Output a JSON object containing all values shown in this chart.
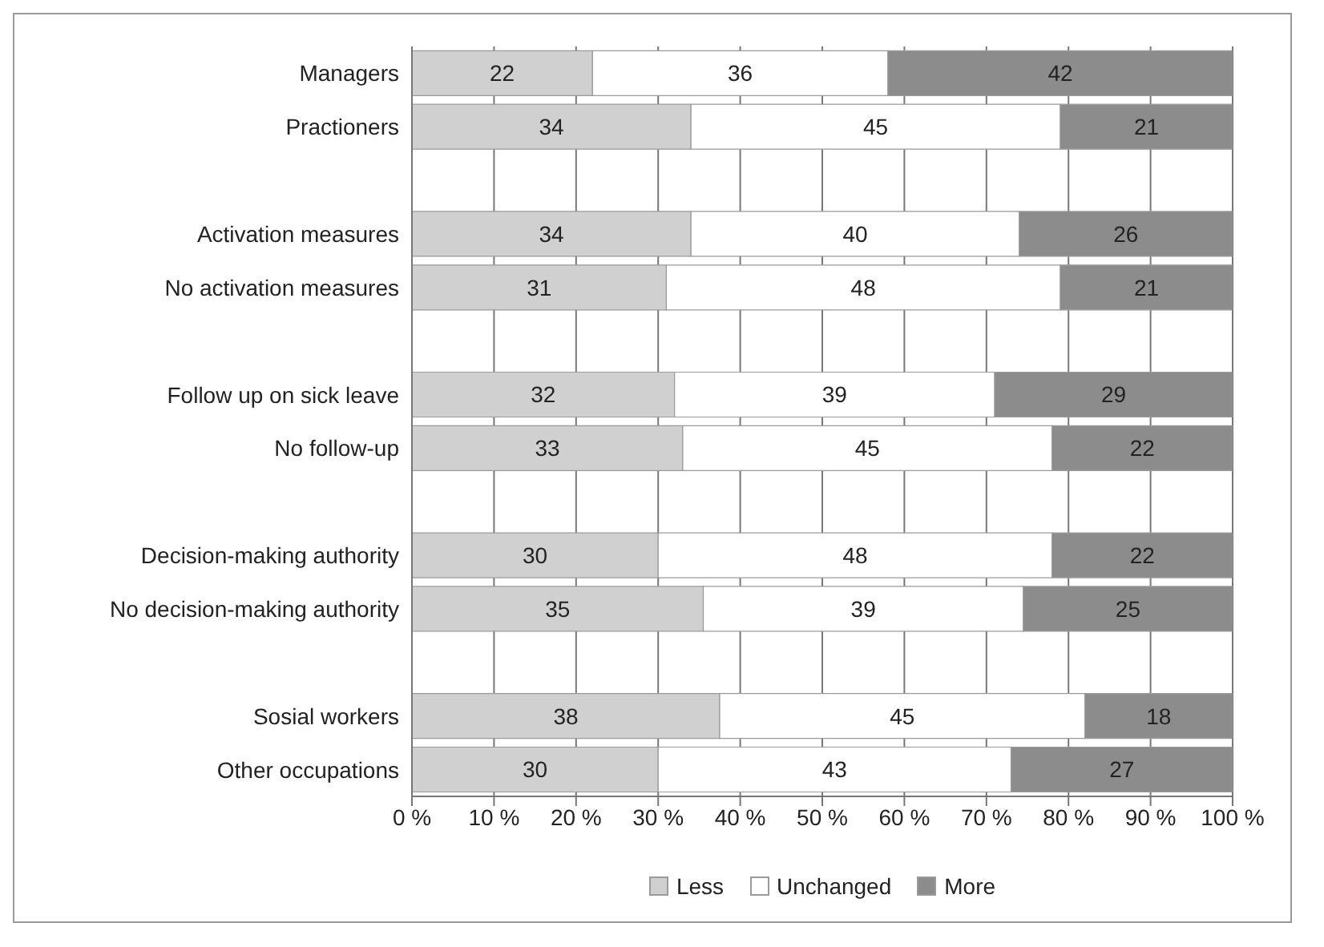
{
  "chart_data": {
    "type": "bar",
    "orientation": "horizontal",
    "stacked": true,
    "categories": [
      "Managers",
      "Practioners",
      null,
      "Activation measures",
      "No activation measures",
      null,
      "Follow up on sick leave",
      "No follow-up",
      null,
      "Decision-making authority",
      "No decision-making authority",
      null,
      "Sosial workers",
      "Other occupations"
    ],
    "series": [
      {
        "name": "Less",
        "color": "#d0d0d0",
        "values": [
          22,
          34,
          null,
          34,
          31,
          null,
          32,
          33,
          null,
          30,
          35.5,
          null,
          37.5,
          30
        ],
        "value_labels": [
          "22",
          "34",
          null,
          "34",
          "31",
          null,
          "32",
          "33",
          null,
          "30",
          "35",
          null,
          "38",
          "30"
        ]
      },
      {
        "name": "Unchanged",
        "color": "#ffffff",
        "values": [
          36,
          45,
          null,
          40,
          48,
          null,
          39,
          45,
          null,
          48,
          39,
          null,
          44.5,
          43
        ],
        "value_labels": [
          "36",
          "45",
          null,
          "40",
          "48",
          null,
          "39",
          "45",
          null,
          "48",
          "39",
          null,
          "45",
          "43"
        ]
      },
      {
        "name": "More",
        "color": "#8c8c8c",
        "values": [
          42,
          21,
          null,
          26,
          21,
          null,
          29,
          22,
          null,
          22,
          25.5,
          null,
          18,
          27
        ],
        "value_labels": [
          "42",
          "21",
          null,
          "26",
          "21",
          null,
          "29",
          "22",
          null,
          "22",
          "25",
          null,
          "18",
          "27"
        ]
      }
    ],
    "xlim": [
      0,
      100
    ],
    "xticks": [
      {
        "value": 0,
        "label": "0 %"
      },
      {
        "value": 10,
        "label": "10 %"
      },
      {
        "value": 20,
        "label": "20 %"
      },
      {
        "value": 30,
        "label": "30 %"
      },
      {
        "value": 40,
        "label": "40 %"
      },
      {
        "value": 50,
        "label": "50 %"
      },
      {
        "value": 60,
        "label": "60 %"
      },
      {
        "value": 70,
        "label": "70 %"
      },
      {
        "value": 80,
        "label": "80 %"
      },
      {
        "value": 90,
        "label": "90 %"
      },
      {
        "value": 100,
        "label": "100 %"
      }
    ],
    "grid": "x",
    "legend": "bottom"
  }
}
